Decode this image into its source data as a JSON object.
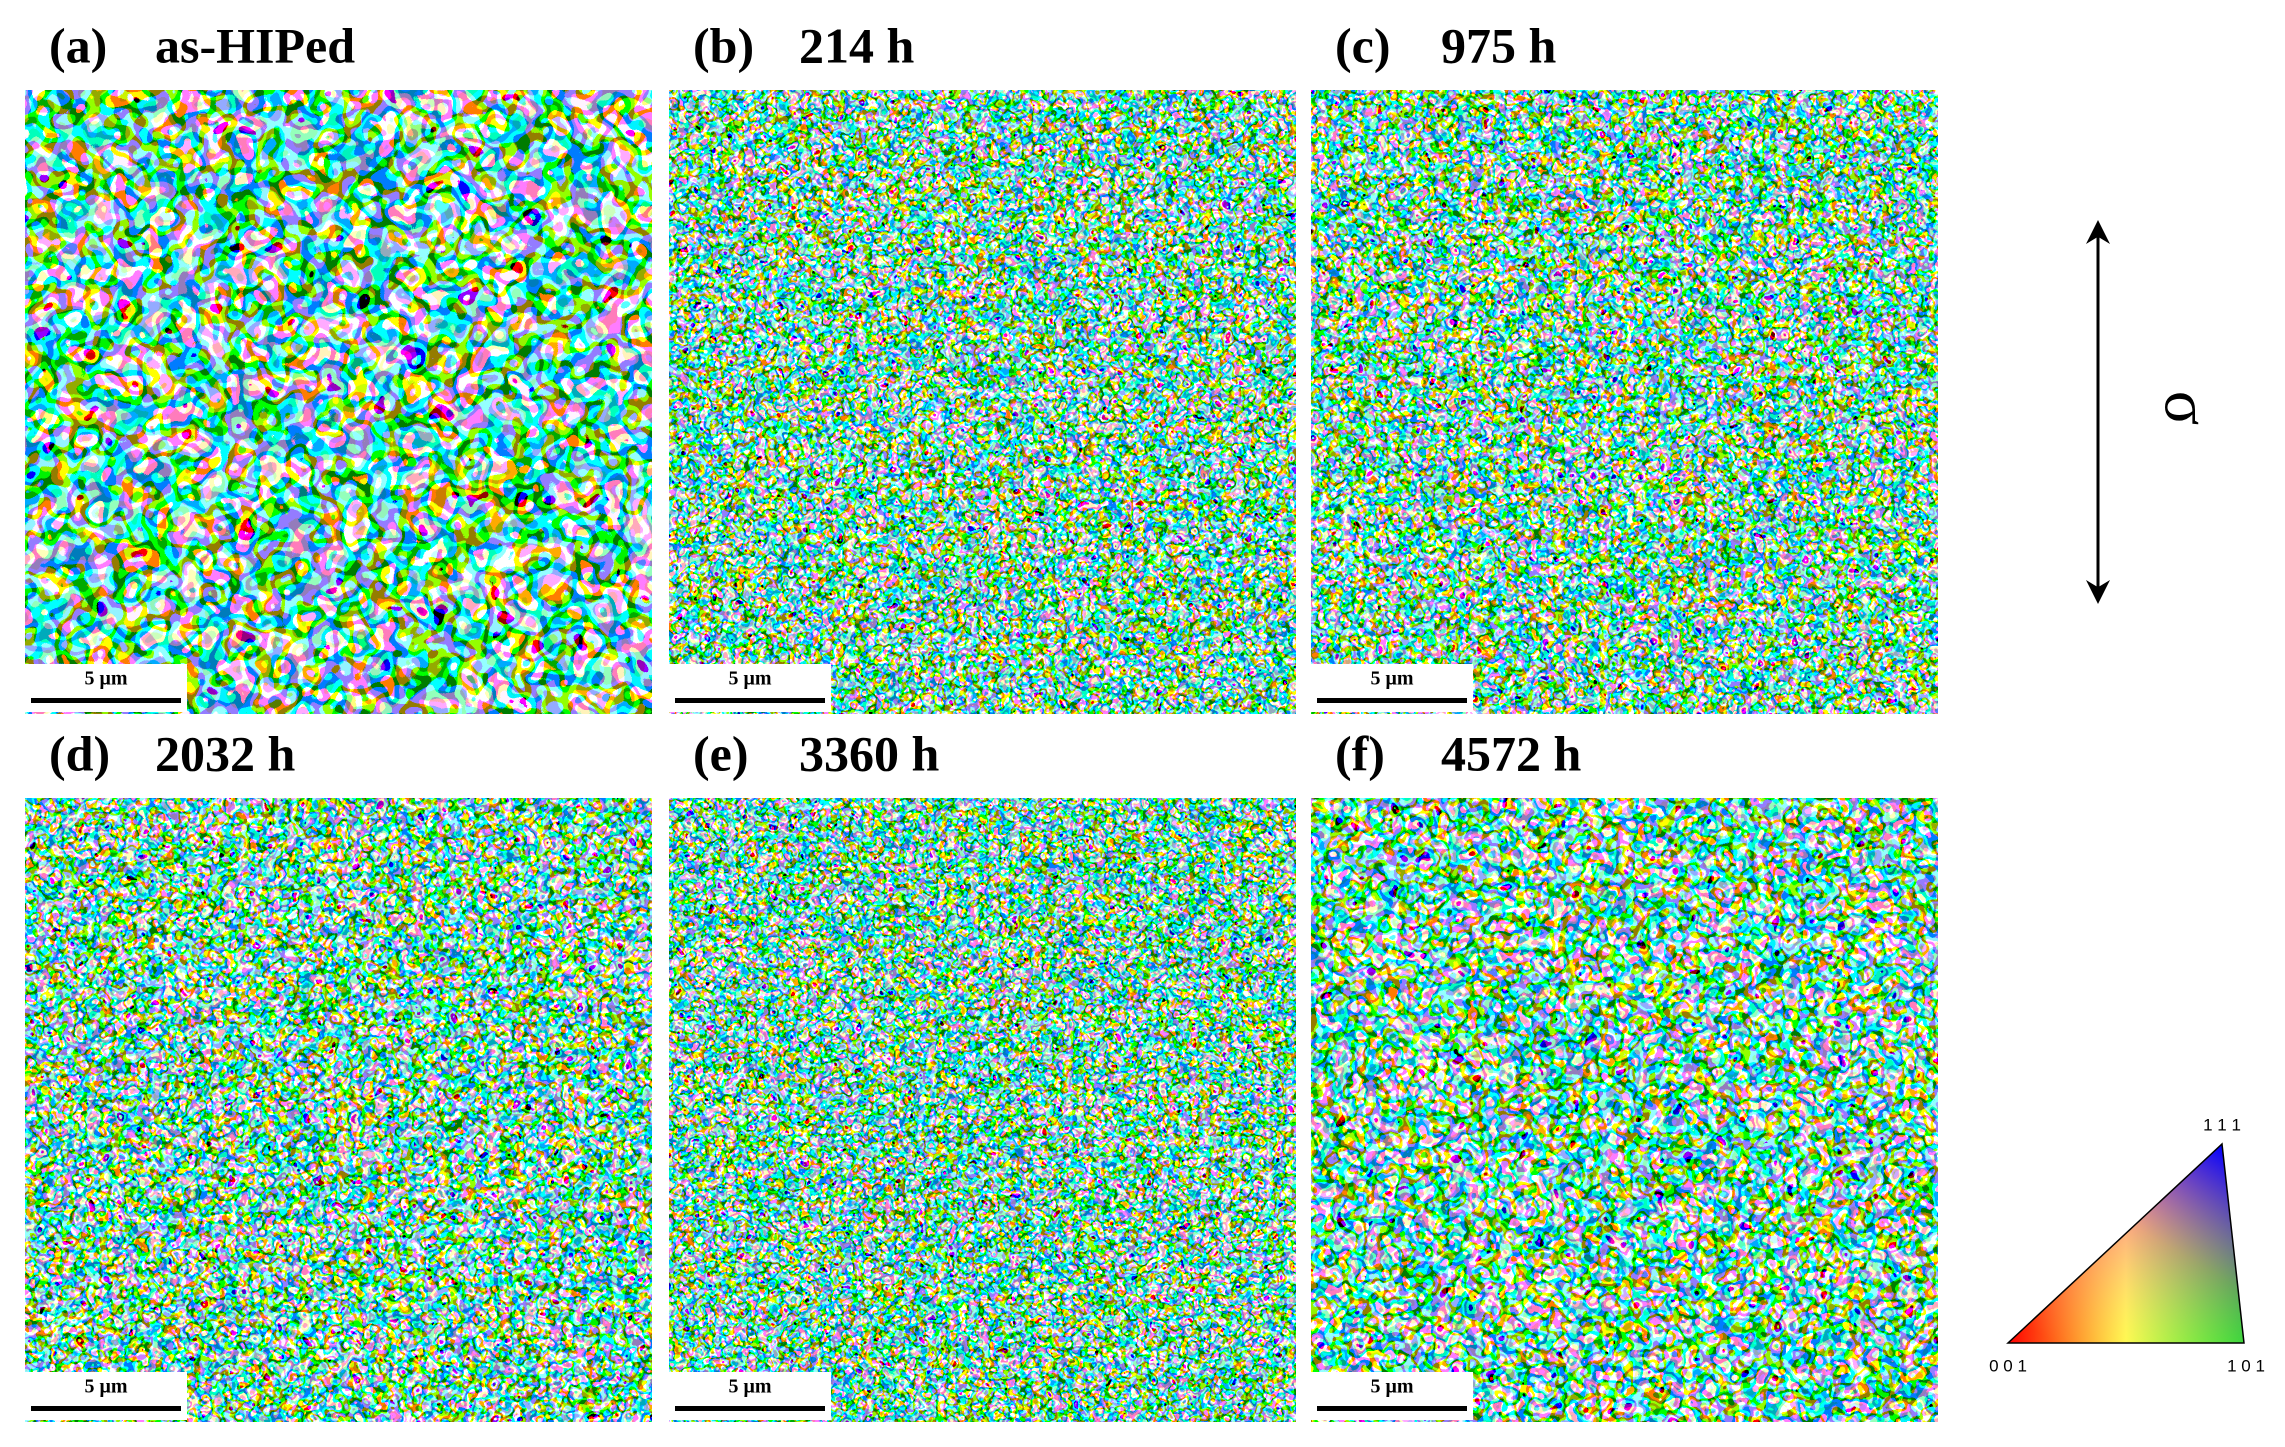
{
  "panels": [
    {
      "label": "(a)",
      "title": "as-HIPed",
      "scale_bar": "5 μm"
    },
    {
      "label": "(b)",
      "title": "214 h",
      "scale_bar": "5 μm"
    },
    {
      "label": "(c)",
      "title": "975 h",
      "scale_bar": "5 μm"
    },
    {
      "label": "(d)",
      "title": "2032 h",
      "scale_bar": "5 μm"
    },
    {
      "label": "(e)",
      "title": "3360 h",
      "scale_bar": "5 μm"
    },
    {
      "label": "(f)",
      "title": "4572 h",
      "scale_bar": "5 μm"
    }
  ],
  "stress_label": "σ",
  "ipf_legend": {
    "corner_001": "0 0 1",
    "corner_101": "1 0 1",
    "corner_111": "1 1 1"
  }
}
